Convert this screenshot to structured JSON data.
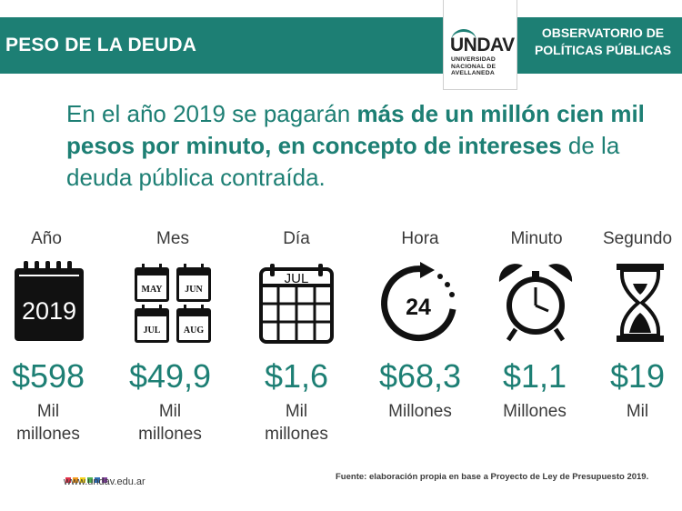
{
  "header": {
    "title": "PESO DE LA DEUDA",
    "logo_mark": "UNDAV",
    "logo_sub_1": "UNIVERSIDAD",
    "logo_sub_2": "NACIONAL DE",
    "logo_sub_3": "AVELLANEDA",
    "observatory_line1": "OBSERVATORIO DE",
    "observatory_line2": "POLÍTICAS PÚBLICAS"
  },
  "intro": {
    "part1": "En el año 2019 se pagarán ",
    "part2": "más de un millón cien mil pesos por minuto, en concepto de intereses",
    "part3": " de la deuda pública contraída."
  },
  "columns": [
    {
      "label": "Año",
      "icon": "calendar-2019-icon",
      "icon_text": "2019",
      "amount": "$598",
      "unit_line1": "Mil",
      "unit_line2": "millones"
    },
    {
      "label": "Mes",
      "icon": "months-calendar-icon",
      "months": [
        "MAY",
        "JUN",
        "JUL",
        "AUG"
      ],
      "amount": "$49,9",
      "unit_line1": "Mil",
      "unit_line2": "millones"
    },
    {
      "label": "Día",
      "icon": "day-calendar-icon",
      "icon_text": "JUL",
      "amount": "$1,6",
      "unit_line1": "Mil",
      "unit_line2": "millones"
    },
    {
      "label": "Hora",
      "icon": "24-hours-icon",
      "icon_text": "24",
      "amount": "$68,3",
      "unit_line1": "Millones",
      "unit_line2": ""
    },
    {
      "label": "Minuto",
      "icon": "alarm-clock-icon",
      "amount": "$1,1",
      "unit_line1": "Millones",
      "unit_line2": ""
    },
    {
      "label": "Segundo",
      "icon": "hourglass-icon",
      "amount": "$19",
      "unit_line1": "Mil",
      "unit_line2": ""
    }
  ],
  "footer": {
    "url": "www.undav.edu.ar",
    "source": "Fuente: elaboración propia en base a Proyecto de Ley de Presupuesto 2019.",
    "dot_colors": [
      "#e2324a",
      "#f39a1e",
      "#f5d31c",
      "#4caf50",
      "#2f6db5",
      "#7d3f98"
    ]
  },
  "colors": {
    "accent": "#1d7f74",
    "text": "#3a3a3a"
  }
}
